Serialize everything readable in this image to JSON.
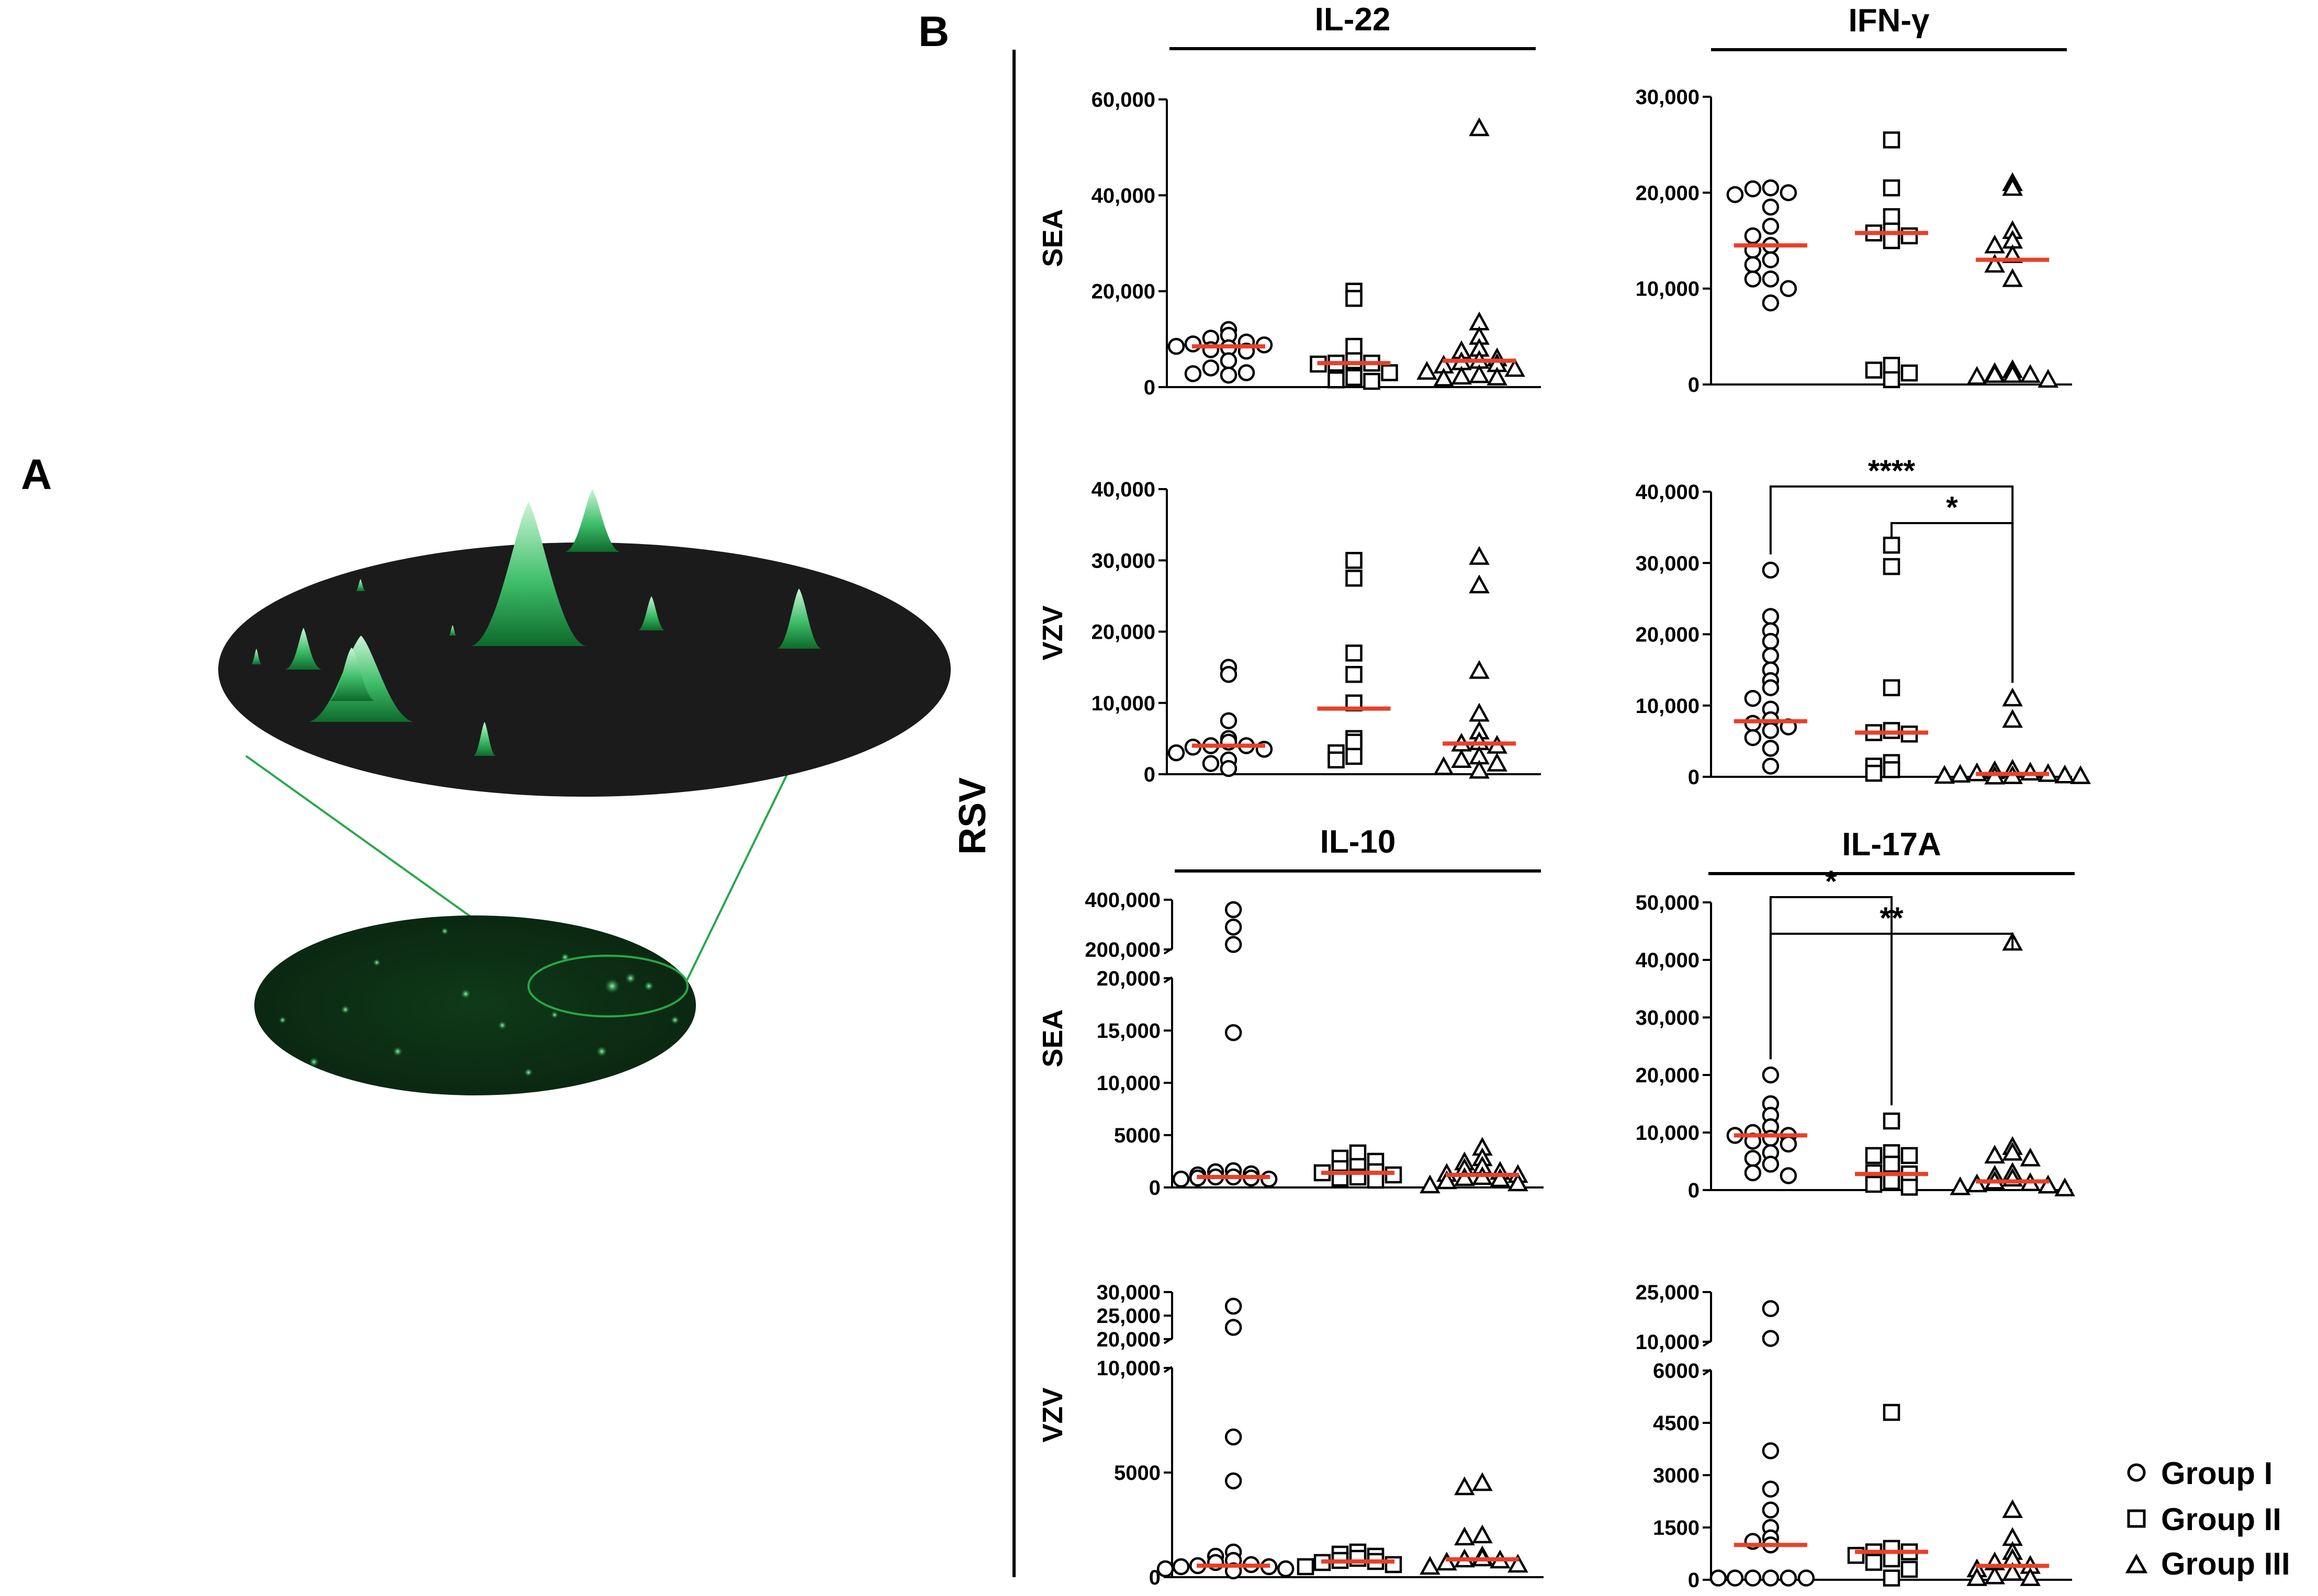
{
  "panel_labels": {
    "a": "A",
    "b": "B"
  },
  "side_label": "RSV",
  "legend": [
    {
      "symbol": "circle",
      "label": "Group I"
    },
    {
      "symbol": "square",
      "label": "Group II"
    },
    {
      "symbol": "triangle",
      "label": "Group III"
    }
  ],
  "colors": {
    "median": "#e8402a",
    "peak_green": "#3fbf6a",
    "dish_dark": "#0b2a12",
    "plate": "#1a1a1a"
  },
  "chart_data": [
    {
      "id": "il22-sea",
      "type": "scatter",
      "title": "IL-22",
      "ylabel": "SEA",
      "ylim": [
        0,
        60000
      ],
      "yticks": [
        {
          "v": 0,
          "label": "0"
        },
        {
          "v": 20000,
          "label": "20,000"
        },
        {
          "v": 40000,
          "label": "40,000"
        },
        {
          "v": 60000,
          "label": "60,000"
        }
      ],
      "groups": [
        {
          "name": "Group I",
          "symbol": "circle",
          "median": 8500,
          "values": [
            12000,
            10800,
            10200,
            9400,
            9000,
            8800,
            8500,
            8200,
            7800,
            7500,
            5500,
            4000,
            3000,
            2800,
            2500
          ]
        },
        {
          "name": "Group II",
          "symbol": "square",
          "median": 5000,
          "values": [
            20000,
            18500,
            8500,
            5500,
            5000,
            5000,
            4800,
            3000,
            2000,
            1500,
            1200
          ]
        },
        {
          "name": "Group III",
          "symbol": "triangle",
          "median": 5500,
          "values": [
            54000,
            13500,
            10500,
            8000,
            7500,
            6000,
            5500,
            5200,
            4800,
            4500,
            3800,
            3200,
            2500,
            2200,
            2000,
            1800
          ]
        }
      ],
      "brackets": []
    },
    {
      "id": "ifng-sea",
      "type": "scatter",
      "title": "IFN-γ",
      "ylabel": "",
      "ylim": [
        0,
        30000
      ],
      "yticks": [
        {
          "v": 0,
          "label": "0"
        },
        {
          "v": 10000,
          "label": "10,000"
        },
        {
          "v": 20000,
          "label": "20,000"
        },
        {
          "v": 30000,
          "label": "30,000"
        }
      ],
      "groups": [
        {
          "name": "Group I",
          "symbol": "circle",
          "median": 14500,
          "values": [
            20500,
            20400,
            20000,
            19800,
            18500,
            16500,
            15500,
            14500,
            14000,
            13000,
            12500,
            11000,
            11000,
            10000,
            8500
          ]
        },
        {
          "name": "Group II",
          "symbol": "square",
          "median": 15800,
          "values": [
            25500,
            20500,
            17500,
            16000,
            15800,
            15500,
            15000,
            2000,
            1500,
            1200,
            500
          ]
        },
        {
          "name": "Group III",
          "symbol": "triangle",
          "median": 13000,
          "values": [
            21000,
            20500,
            16000,
            15000,
            14500,
            13500,
            12500,
            11000,
            1500,
            1200,
            1000,
            1000,
            1000,
            800,
            500
          ]
        }
      ],
      "brackets": []
    },
    {
      "id": "il22-vzv",
      "type": "scatter",
      "title": "",
      "ylabel": "VZV",
      "ylim": [
        0,
        40000
      ],
      "yticks": [
        {
          "v": 0,
          "label": "0"
        },
        {
          "v": 10000,
          "label": "10,000"
        },
        {
          "v": 20000,
          "label": "20,000"
        },
        {
          "v": 30000,
          "label": "30,000"
        },
        {
          "v": 40000,
          "label": "40,000"
        }
      ],
      "groups": [
        {
          "name": "Group I",
          "symbol": "circle",
          "median": 4000,
          "values": [
            15000,
            14000,
            7500,
            5000,
            4500,
            4000,
            4000,
            3800,
            3500,
            3000,
            2000,
            1500,
            800
          ]
        },
        {
          "name": "Group II",
          "symbol": "square",
          "median": 9200,
          "values": [
            30000,
            27500,
            17000,
            14000,
            10000,
            5000,
            4500,
            3000,
            2500,
            2000
          ]
        },
        {
          "name": "Group III",
          "symbol": "triangle",
          "median": 4300,
          "values": [
            30500,
            26500,
            14500,
            8500,
            6000,
            4500,
            4300,
            4000,
            2500,
            2000,
            1500,
            1000,
            500
          ]
        }
      ],
      "brackets": []
    },
    {
      "id": "ifng-vzv",
      "type": "scatter",
      "title": "",
      "ylabel": "",
      "ylim": [
        0,
        40000
      ],
      "yticks": [
        {
          "v": 0,
          "label": "0"
        },
        {
          "v": 10000,
          "label": "10,000"
        },
        {
          "v": 20000,
          "label": "20,000"
        },
        {
          "v": 30000,
          "label": "30,000"
        },
        {
          "v": 40000,
          "label": "40,000"
        }
      ],
      "groups": [
        {
          "name": "Group I",
          "symbol": "circle",
          "median": 7800,
          "values": [
            29000,
            22500,
            20500,
            19000,
            17000,
            15000,
            13500,
            12500,
            11000,
            9500,
            8000,
            7500,
            7000,
            6500,
            5500,
            4000,
            1500
          ]
        },
        {
          "name": "Group II",
          "symbol": "square",
          "median": 6200,
          "values": [
            32500,
            29500,
            12500,
            6500,
            6200,
            6000,
            2000,
            1500,
            1000,
            500
          ]
        },
        {
          "name": "Group III",
          "symbol": "triangle",
          "median": 400,
          "values": [
            11000,
            8000,
            1000,
            800,
            600,
            500,
            400,
            300,
            200,
            150,
            100,
            100,
            50
          ]
        }
      ],
      "brackets": [
        {
          "from": 0,
          "to": 2,
          "label": "****"
        },
        {
          "from": 1,
          "to": 2,
          "label": "*"
        }
      ]
    },
    {
      "id": "il10-sea",
      "type": "scatter",
      "title": "IL-10",
      "ylabel": "SEA",
      "ylim": [
        0,
        400000
      ],
      "axis_break": true,
      "yticks": [
        {
          "v": 0,
          "label": "0"
        },
        {
          "v": 5000,
          "label": "5000"
        },
        {
          "v": 10000,
          "label": "10,000"
        },
        {
          "v": 15000,
          "label": "15,000"
        },
        {
          "v": 20000,
          "label": "20,000"
        },
        {
          "v": 200000,
          "label": "200,000"
        },
        {
          "v": 400000,
          "label": "400,000"
        }
      ],
      "groups": [
        {
          "name": "Group I",
          "symbol": "circle",
          "median": 1000,
          "values": [
            360000,
            290000,
            220000,
            14800,
            1600,
            1500,
            1300,
            1200,
            1000,
            1000,
            900,
            900,
            800,
            800
          ]
        },
        {
          "name": "Group II",
          "symbol": "square",
          "median": 1400,
          "values": [
            3300,
            2800,
            2500,
            2000,
            1800,
            1500,
            1400,
            1200,
            1000,
            900,
            700
          ]
        },
        {
          "name": "Group III",
          "symbol": "triangle",
          "median": 1200,
          "values": [
            3800,
            2800,
            2400,
            2000,
            1800,
            1500,
            1300,
            1200,
            1000,
            900,
            800,
            600,
            400,
            200
          ]
        }
      ],
      "brackets": []
    },
    {
      "id": "il17a-sea",
      "type": "scatter",
      "title": "IL-17A",
      "ylabel": "",
      "ylim": [
        0,
        50000
      ],
      "yticks": [
        {
          "v": 0,
          "label": "0"
        },
        {
          "v": 10000,
          "label": "10,000"
        },
        {
          "v": 20000,
          "label": "20,000"
        },
        {
          "v": 30000,
          "label": "30,000"
        },
        {
          "v": 40000,
          "label": "40,000"
        },
        {
          "v": 50000,
          "label": "50,000"
        }
      ],
      "groups": [
        {
          "name": "Group I",
          "symbol": "circle",
          "median": 9500,
          "values": [
            20000,
            15000,
            13000,
            11000,
            10000,
            9500,
            9500,
            9000,
            8500,
            8000,
            6500,
            5500,
            4500,
            3000,
            2500
          ]
        },
        {
          "name": "Group II",
          "symbol": "square",
          "median": 2800,
          "values": [
            12000,
            6500,
            6000,
            6000,
            4500,
            3000,
            2800,
            1500,
            1000,
            500
          ]
        },
        {
          "name": "Group III",
          "symbol": "triangle",
          "median": 1500,
          "values": [
            43000,
            7500,
            6500,
            6000,
            5500,
            3000,
            2500,
            2000,
            1500,
            1200,
            1000,
            800,
            500,
            300
          ]
        }
      ],
      "brackets": [
        {
          "from": 0,
          "to": 1,
          "label": "*"
        },
        {
          "from": 0,
          "to": 2,
          "label": "**"
        }
      ]
    },
    {
      "id": "il10-vzv",
      "type": "scatter",
      "title": "",
      "ylabel": "VZV",
      "ylim": [
        0,
        30000
      ],
      "axis_break": true,
      "yticks": [
        {
          "v": 0,
          "label": "0"
        },
        {
          "v": 5000,
          "label": "5000"
        },
        {
          "v": 10000,
          "label": "10,000"
        },
        {
          "v": 20000,
          "label": "20,000"
        },
        {
          "v": 25000,
          "label": "25,000"
        },
        {
          "v": 30000,
          "label": "30,000"
        }
      ],
      "groups": [
        {
          "name": "Group I",
          "symbol": "circle",
          "median": 550,
          "values": [
            27000,
            22500,
            6700,
            4600,
            1200,
            1000,
            800,
            700,
            600,
            550,
            500,
            500,
            400,
            400,
            300
          ]
        },
        {
          "name": "Group II",
          "symbol": "square",
          "median": 750,
          "values": [
            1200,
            1100,
            1000,
            900,
            800,
            750,
            700,
            600,
            500
          ]
        },
        {
          "name": "Group III",
          "symbol": "triangle",
          "median": 850,
          "values": [
            4500,
            4300,
            2000,
            1900,
            1000,
            900,
            850,
            800,
            700,
            600,
            500
          ]
        }
      ],
      "brackets": []
    },
    {
      "id": "il17a-vzv",
      "type": "scatter",
      "title": "",
      "ylabel": "",
      "ylim": [
        0,
        25000
      ],
      "axis_break": true,
      "yticks": [
        {
          "v": 0,
          "label": "0"
        },
        {
          "v": 1500,
          "label": "1500"
        },
        {
          "v": 3000,
          "label": "3000"
        },
        {
          "v": 4500,
          "label": "4500"
        },
        {
          "v": 6000,
          "label": "6000"
        },
        {
          "v": 10000,
          "label": "10,000"
        },
        {
          "v": 25000,
          "label": "25,000"
        }
      ],
      "groups": [
        {
          "name": "Group I",
          "symbol": "circle",
          "median": 1000,
          "values": [
            20000,
            11000,
            3700,
            2600,
            2000,
            1500,
            1200,
            1100,
            1000,
            50,
            50,
            50,
            50,
            50,
            50
          ]
        },
        {
          "name": "Group II",
          "symbol": "square",
          "median": 800,
          "values": [
            4800,
            900,
            800,
            800,
            700,
            600,
            500,
            300,
            50
          ]
        },
        {
          "name": "Group III",
          "symbol": "triangle",
          "median": 400,
          "values": [
            2000,
            1200,
            800,
            600,
            500,
            400,
            300,
            200,
            100,
            50,
            50
          ]
        }
      ],
      "brackets": []
    }
  ]
}
